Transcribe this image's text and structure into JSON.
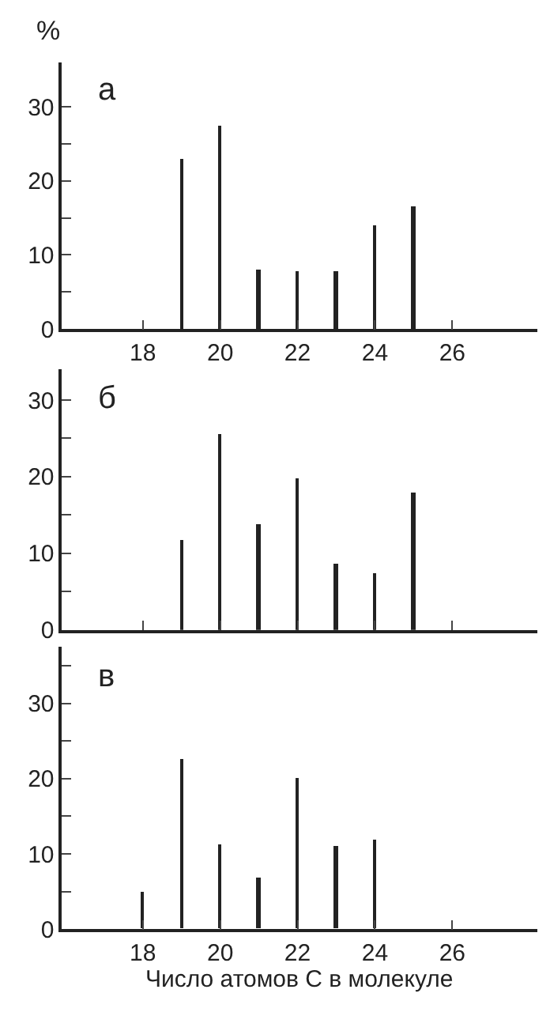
{
  "chart_data": [
    {
      "type": "bar",
      "ylabel": "%",
      "annotations": [
        "а"
      ],
      "x": [
        19,
        20,
        21,
        22,
        23,
        24,
        25
      ],
      "series": [
        {
          "color": "#222222",
          "values": [
            23,
            27.5,
            8,
            7.8,
            7.8,
            14,
            16.6
          ]
        }
      ],
      "xlim": [
        15.9,
        28.2
      ],
      "xticks": [
        18,
        20,
        22,
        24,
        26
      ],
      "ylim": [
        0,
        36
      ],
      "yticks": [
        0,
        {
          "value": 5,
          "label": null
        },
        10,
        {
          "value": 15,
          "label": null
        },
        20,
        {
          "value": 25,
          "label": null
        },
        30
      ]
    },
    {
      "type": "bar",
      "annotations": [
        "б"
      ],
      "x": [
        19,
        20,
        21,
        22,
        23,
        24,
        25
      ],
      "series": [
        {
          "color": "#222222",
          "values": [
            11.7,
            25.6,
            13.8,
            19.8,
            8.7,
            7.4,
            17.8
          ]
        }
      ],
      "xlim": [
        15.9,
        28.2
      ],
      "xticks": [
        18,
        20,
        22,
        24,
        26
      ],
      "ylim": [
        0,
        34
      ],
      "yticks": [
        0,
        {
          "value": 5,
          "label": null
        },
        10,
        {
          "value": 15,
          "label": null
        },
        20,
        {
          "value": 25,
          "label": null
        },
        30
      ],
      "tick_labels": "y"
    },
    {
      "type": "bar",
      "xlabel": "Число атомов С в молекуле",
      "annotations": [
        "в"
      ],
      "x": [
        18,
        19,
        20,
        21,
        22,
        23,
        24
      ],
      "series": [
        {
          "color": "#222222",
          "values": [
            5,
            22.5,
            11.3,
            6.9,
            20,
            11.1,
            11.9
          ]
        }
      ],
      "xlim": [
        15.9,
        28.2
      ],
      "xticks": [
        18,
        20,
        22,
        24,
        26
      ],
      "ylim": [
        0,
        37.5
      ],
      "yticks": [
        0,
        {
          "value": 5,
          "label": null
        },
        10,
        {
          "value": 15,
          "label": null
        },
        20,
        {
          "value": 25,
          "label": null
        },
        30,
        {
          "value": 35,
          "label": null
        }
      ]
    }
  ]
}
